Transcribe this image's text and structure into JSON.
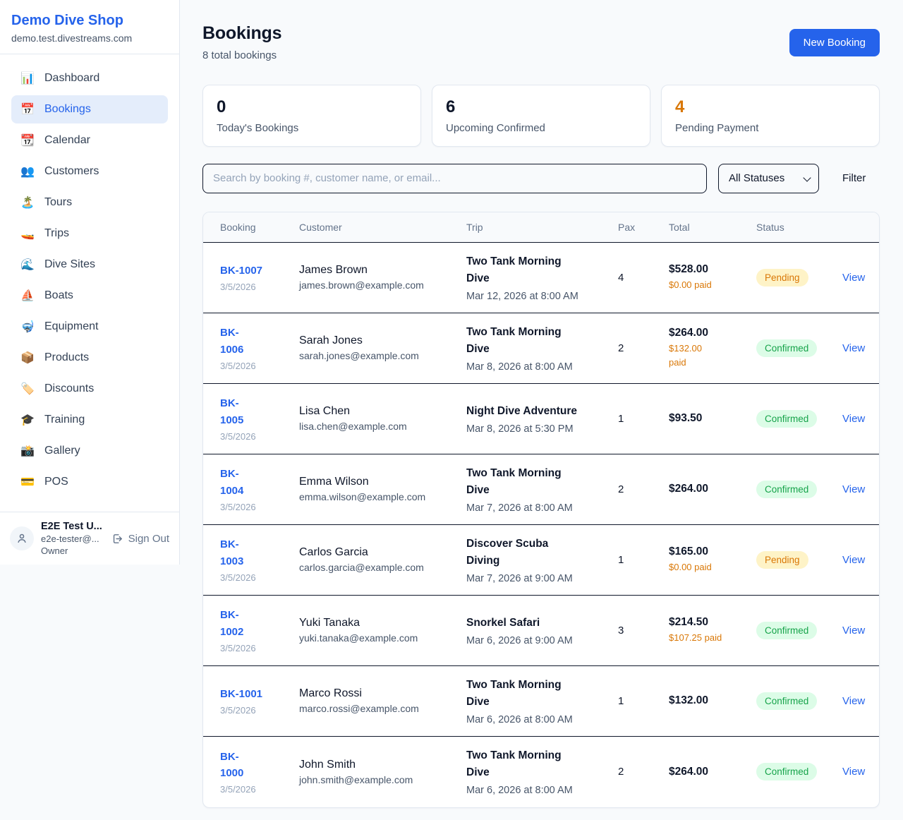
{
  "colors": {
    "accent": "#2563eb",
    "pending_text": "#d97706",
    "pending_bg": "#fef3c7",
    "confirmed_text": "#16a34a",
    "confirmed_bg": "#dcfce7",
    "divider": "#0f172a"
  },
  "sidebar": {
    "brand": "Demo Dive Shop",
    "domain": "demo.test.divestreams.com",
    "items": [
      {
        "icon": "📊",
        "label": "Dashboard",
        "active": false
      },
      {
        "icon": "📅",
        "label": "Bookings",
        "active": true
      },
      {
        "icon": "📆",
        "label": "Calendar",
        "active": false
      },
      {
        "icon": "👥",
        "label": "Customers",
        "active": false
      },
      {
        "icon": "🏝️",
        "label": "Tours",
        "active": false
      },
      {
        "icon": "🚤",
        "label": "Trips",
        "active": false
      },
      {
        "icon": "🌊",
        "label": "Dive Sites",
        "active": false
      },
      {
        "icon": "⛵",
        "label": "Boats",
        "active": false
      },
      {
        "icon": "🤿",
        "label": "Equipment",
        "active": false
      },
      {
        "icon": "📦",
        "label": "Products",
        "active": false
      },
      {
        "icon": "🏷️",
        "label": "Discounts",
        "active": false
      },
      {
        "icon": "🎓",
        "label": "Training",
        "active": false
      },
      {
        "icon": "📸",
        "label": "Gallery",
        "active": false
      },
      {
        "icon": "💳",
        "label": "POS",
        "active": false
      }
    ],
    "user": {
      "name": "E2E Test U...",
      "email": "e2e-tester@...",
      "role": "Owner",
      "sign_out_label": "Sign Out"
    }
  },
  "header": {
    "title": "Bookings",
    "subtitle": "8 total bookings",
    "new_booking_label": "New Booking"
  },
  "stats": [
    {
      "value": "0",
      "label": "Today's Bookings",
      "value_color": "#0f172a"
    },
    {
      "value": "6",
      "label": "Upcoming Confirmed",
      "value_color": "#0f172a"
    },
    {
      "value": "4",
      "label": "Pending Payment",
      "value_color": "#d97706"
    }
  ],
  "controls": {
    "search_placeholder": "Search by booking #, customer name, or email...",
    "status_filter_value": "All Statuses",
    "filter_label": "Filter"
  },
  "table": {
    "columns": [
      "Booking",
      "Customer",
      "Trip",
      "Pax",
      "Total",
      "Status"
    ],
    "view_label": "View",
    "rows": [
      {
        "id": "BK-1007",
        "date": "3/5/2026",
        "customer": "James Brown",
        "email": "james.brown@example.com",
        "trip": "Two Tank Morning\nDive",
        "when": "Mar 12, 2026 at 8:00 AM",
        "pax": "4",
        "total": "$528.00",
        "paid": "$0.00 paid",
        "status": "Pending"
      },
      {
        "id": "BK-\n1006",
        "date": "3/5/2026",
        "customer": "Sarah Jones",
        "email": "sarah.jones@example.com",
        "trip": "Two Tank Morning\nDive",
        "when": "Mar 8, 2026 at 8:00 AM",
        "pax": "2",
        "total": "$264.00",
        "paid": "$132.00\npaid",
        "status": "Confirmed"
      },
      {
        "id": "BK-\n1005",
        "date": "3/5/2026",
        "customer": "Lisa Chen",
        "email": "lisa.chen@example.com",
        "trip": "Night Dive Adventure",
        "when": "Mar 8, 2026 at 5:30 PM",
        "pax": "1",
        "total": "$93.50",
        "paid": "",
        "status": "Confirmed"
      },
      {
        "id": "BK-\n1004",
        "date": "3/5/2026",
        "customer": "Emma Wilson",
        "email": "emma.wilson@example.com",
        "trip": "Two Tank Morning\nDive",
        "when": "Mar 7, 2026 at 8:00 AM",
        "pax": "2",
        "total": "$264.00",
        "paid": "",
        "status": "Confirmed"
      },
      {
        "id": "BK-\n1003",
        "date": "3/5/2026",
        "customer": "Carlos Garcia",
        "email": "carlos.garcia@example.com",
        "trip": "Discover Scuba\nDiving",
        "when": "Mar 7, 2026 at 9:00 AM",
        "pax": "1",
        "total": "$165.00",
        "paid": "$0.00 paid",
        "status": "Pending"
      },
      {
        "id": "BK-\n1002",
        "date": "3/5/2026",
        "customer": "Yuki Tanaka",
        "email": "yuki.tanaka@example.com",
        "trip": "Snorkel Safari",
        "when": "Mar 6, 2026 at 9:00 AM",
        "pax": "3",
        "total": "$214.50",
        "paid": "$107.25 paid",
        "status": "Confirmed"
      },
      {
        "id": "BK-1001",
        "date": "3/5/2026",
        "customer": "Marco Rossi",
        "email": "marco.rossi@example.com",
        "trip": "Two Tank Morning\nDive",
        "when": "Mar 6, 2026 at 8:00 AM",
        "pax": "1",
        "total": "$132.00",
        "paid": "",
        "status": "Confirmed"
      },
      {
        "id": "BK-\n1000",
        "date": "3/5/2026",
        "customer": "John Smith",
        "email": "john.smith@example.com",
        "trip": "Two Tank Morning\nDive",
        "when": "Mar 6, 2026 at 8:00 AM",
        "pax": "2",
        "total": "$264.00",
        "paid": "",
        "status": "Confirmed"
      }
    ]
  }
}
